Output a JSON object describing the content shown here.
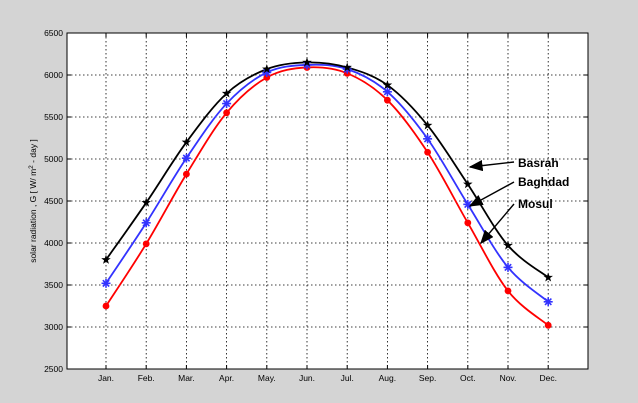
{
  "chart_data": {
    "type": "line",
    "title": "",
    "xlabel": "",
    "ylabel_parts": [
      "solar radiation , G [ W/ m",
      "2",
      " - day ]"
    ],
    "categories": [
      "Jan.",
      "Feb.",
      "Mar.",
      "Apr.",
      "May.",
      "Jun.",
      "Jul.",
      "Aug.",
      "Sep.",
      "Oct.",
      "Nov.",
      "Dec."
    ],
    "ylim": [
      2500,
      6500
    ],
    "yticks": [
      2500,
      3000,
      3500,
      4000,
      4500,
      5000,
      5500,
      6000,
      6500
    ],
    "grid": true,
    "legend": "none",
    "series": [
      {
        "name": "Basrah",
        "color": "#000000",
        "marker": "star",
        "values": [
          3800,
          4480,
          5200,
          5780,
          6070,
          6150,
          6090,
          5880,
          5400,
          4700,
          3970,
          3590
        ]
      },
      {
        "name": "Baghdad",
        "color": "#3333ff",
        "marker": "asterisk",
        "values": [
          3520,
          4240,
          5010,
          5660,
          6030,
          6120,
          6070,
          5800,
          5240,
          4460,
          3710,
          3300
        ]
      },
      {
        "name": "Mosul",
        "color": "#ff0000",
        "marker": "circle",
        "values": [
          3250,
          3990,
          4820,
          5550,
          5970,
          6090,
          6020,
          5700,
          5080,
          4240,
          3430,
          3020
        ]
      }
    ],
    "annotations": [
      {
        "text": "Basrah",
        "series": "Basrah"
      },
      {
        "text": "Baghdad",
        "series": "Baghdad"
      },
      {
        "text": "Mosul",
        "series": "Mosul"
      }
    ]
  }
}
